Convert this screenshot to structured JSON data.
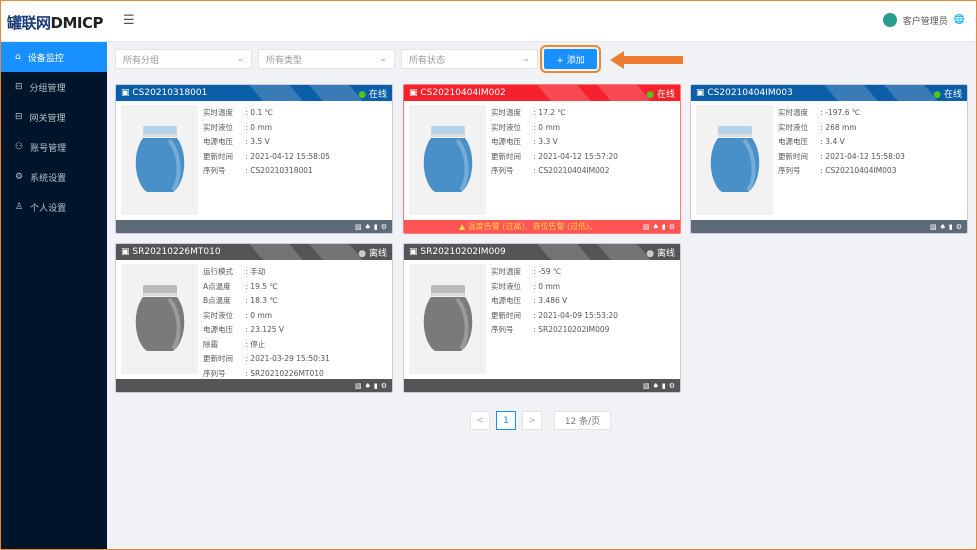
{
  "header": {
    "logo_cn": "罐联网",
    "logo_en": "DMICP",
    "user": "客户管理员"
  },
  "sidebar": {
    "items": [
      {
        "label": "设备监控",
        "icon": "home-icon",
        "glyph": "⌂"
      },
      {
        "label": "分组管理",
        "icon": "group-icon",
        "glyph": "⊟"
      },
      {
        "label": "网关管理",
        "icon": "gateway-icon",
        "glyph": "⊟"
      },
      {
        "label": "账号管理",
        "icon": "account-icon",
        "glyph": "⚇"
      },
      {
        "label": "系统设置",
        "icon": "gear-icon",
        "glyph": "⚙"
      },
      {
        "label": "个人设置",
        "icon": "user-icon",
        "glyph": "♙"
      }
    ]
  },
  "filters": [
    "所有分组",
    "所有类型",
    "所有状态"
  ],
  "add_label": "+ 添加",
  "colors": {
    "online": "#0b5ea8",
    "alarm": "#f5222d",
    "offline": "#555555",
    "accent": "#1890ff"
  },
  "cards": [
    {
      "id": "CS20210318001",
      "status": "在线",
      "state": "online",
      "fields": [
        [
          "实时温度",
          "0.1 ℃"
        ],
        [
          "实时液位",
          "0 mm"
        ],
        [
          "电源电压",
          "3.5 V"
        ],
        [
          "更新时间",
          "2021-04-12 15:58:05"
        ],
        [
          "序列号",
          "CS20210318001"
        ]
      ]
    },
    {
      "id": "CS20210404IM002",
      "status": "在线",
      "state": "alarm",
      "alarm": "温度告警 (过高)、液位告警 (过低)、",
      "fields": [
        [
          "实时温度",
          "17.2 ℃"
        ],
        [
          "实时液位",
          "0 mm"
        ],
        [
          "电源电压",
          "3.3 V"
        ],
        [
          "更新时间",
          "2021-04-12 15:57:20"
        ],
        [
          "序列号",
          "CS20210404IM002"
        ]
      ]
    },
    {
      "id": "CS20210404IM003",
      "status": "在线",
      "state": "online",
      "fields": [
        [
          "实时温度",
          "-197.6 ℃"
        ],
        [
          "实时液位",
          "268 mm"
        ],
        [
          "电源电压",
          "3.4 V"
        ],
        [
          "更新时间",
          "2021-04-12 15:58:03"
        ],
        [
          "序列号",
          "CS20210404IM003"
        ]
      ]
    },
    {
      "id": "SR20210226MT010",
      "status": "离线",
      "state": "offline",
      "fields": [
        [
          "运行模式",
          "手动"
        ],
        [
          "A点温度",
          "19.5 ℃"
        ],
        [
          "B点温度",
          "18.3 ℃"
        ],
        [
          "实时液位",
          "0 mm"
        ],
        [
          "电源电压",
          "23.125 V"
        ],
        [
          "除霜",
          "停止"
        ],
        [
          "更新时间",
          "2021-03-29 15:50:31"
        ],
        [
          "序列号",
          "SR20210226MT010"
        ]
      ]
    },
    {
      "id": "SR20210202IM009",
      "status": "离线",
      "state": "offline",
      "fields": [
        [
          "实时温度",
          "-59 ℃"
        ],
        [
          "实时液位",
          "0 mm"
        ],
        [
          "电源电压",
          "3.486 V"
        ],
        [
          "更新时间",
          "2021-04-09 15:53:20"
        ],
        [
          "序列号",
          "SR20210202IM009"
        ]
      ]
    }
  ],
  "pagination": {
    "prev": "<",
    "current": "1",
    "next": ">",
    "page_size": "12 条/页"
  }
}
